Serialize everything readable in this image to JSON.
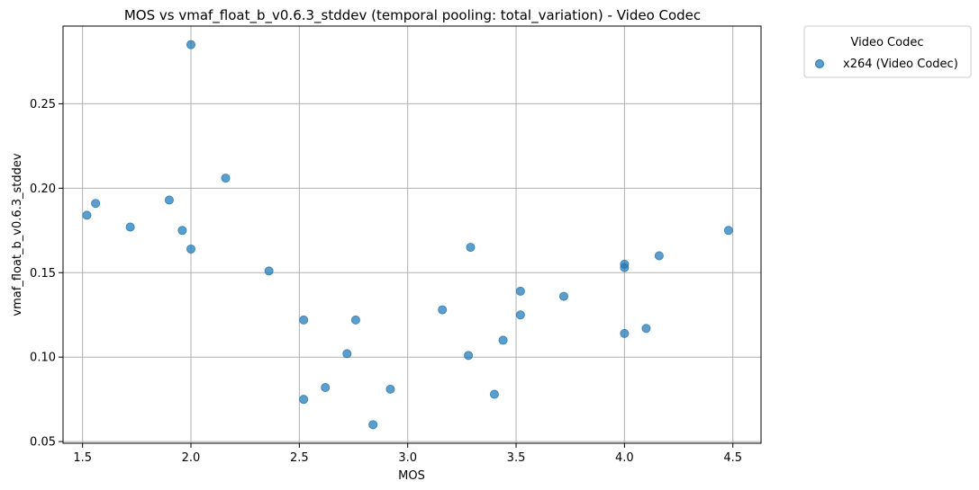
{
  "chart_data": {
    "type": "scatter",
    "title": "MOS vs vmaf_float_b_v0.6.3_stddev (temporal pooling: total_variation) - Video Codec",
    "xlabel": "MOS",
    "ylabel": "vmaf_float_b_v0.6.3_stddev",
    "xlim": [
      1.41,
      4.63
    ],
    "ylim": [
      0.049,
      0.296
    ],
    "xticks": [
      "1.5",
      "2.0",
      "2.5",
      "3.0",
      "3.5",
      "4.0",
      "4.5"
    ],
    "yticks": [
      "0.05",
      "0.10",
      "0.15",
      "0.20",
      "0.25"
    ],
    "grid": true,
    "legend": {
      "title": "Video Codec",
      "placement": "outside upper-right",
      "entries": [
        "x264 (Video Codec)"
      ]
    },
    "series": [
      {
        "name": "x264 (Video Codec)",
        "color": "#1f77b4",
        "points": [
          [
            1.52,
            0.184
          ],
          [
            1.56,
            0.191
          ],
          [
            1.72,
            0.177
          ],
          [
            1.9,
            0.193
          ],
          [
            1.96,
            0.175
          ],
          [
            2.0,
            0.164
          ],
          [
            2.0,
            0.285
          ],
          [
            2.16,
            0.206
          ],
          [
            2.36,
            0.151
          ],
          [
            2.52,
            0.122
          ],
          [
            2.52,
            0.075
          ],
          [
            2.62,
            0.082
          ],
          [
            2.72,
            0.102
          ],
          [
            2.76,
            0.122
          ],
          [
            2.84,
            0.06
          ],
          [
            2.92,
            0.081
          ],
          [
            3.16,
            0.128
          ],
          [
            3.28,
            0.101
          ],
          [
            3.29,
            0.165
          ],
          [
            3.4,
            0.078
          ],
          [
            3.44,
            0.11
          ],
          [
            3.52,
            0.139
          ],
          [
            3.52,
            0.125
          ],
          [
            3.72,
            0.136
          ],
          [
            4.0,
            0.155
          ],
          [
            4.0,
            0.153
          ],
          [
            4.0,
            0.114
          ],
          [
            4.1,
            0.117
          ],
          [
            4.16,
            0.16
          ],
          [
            4.48,
            0.175
          ]
        ]
      }
    ]
  }
}
